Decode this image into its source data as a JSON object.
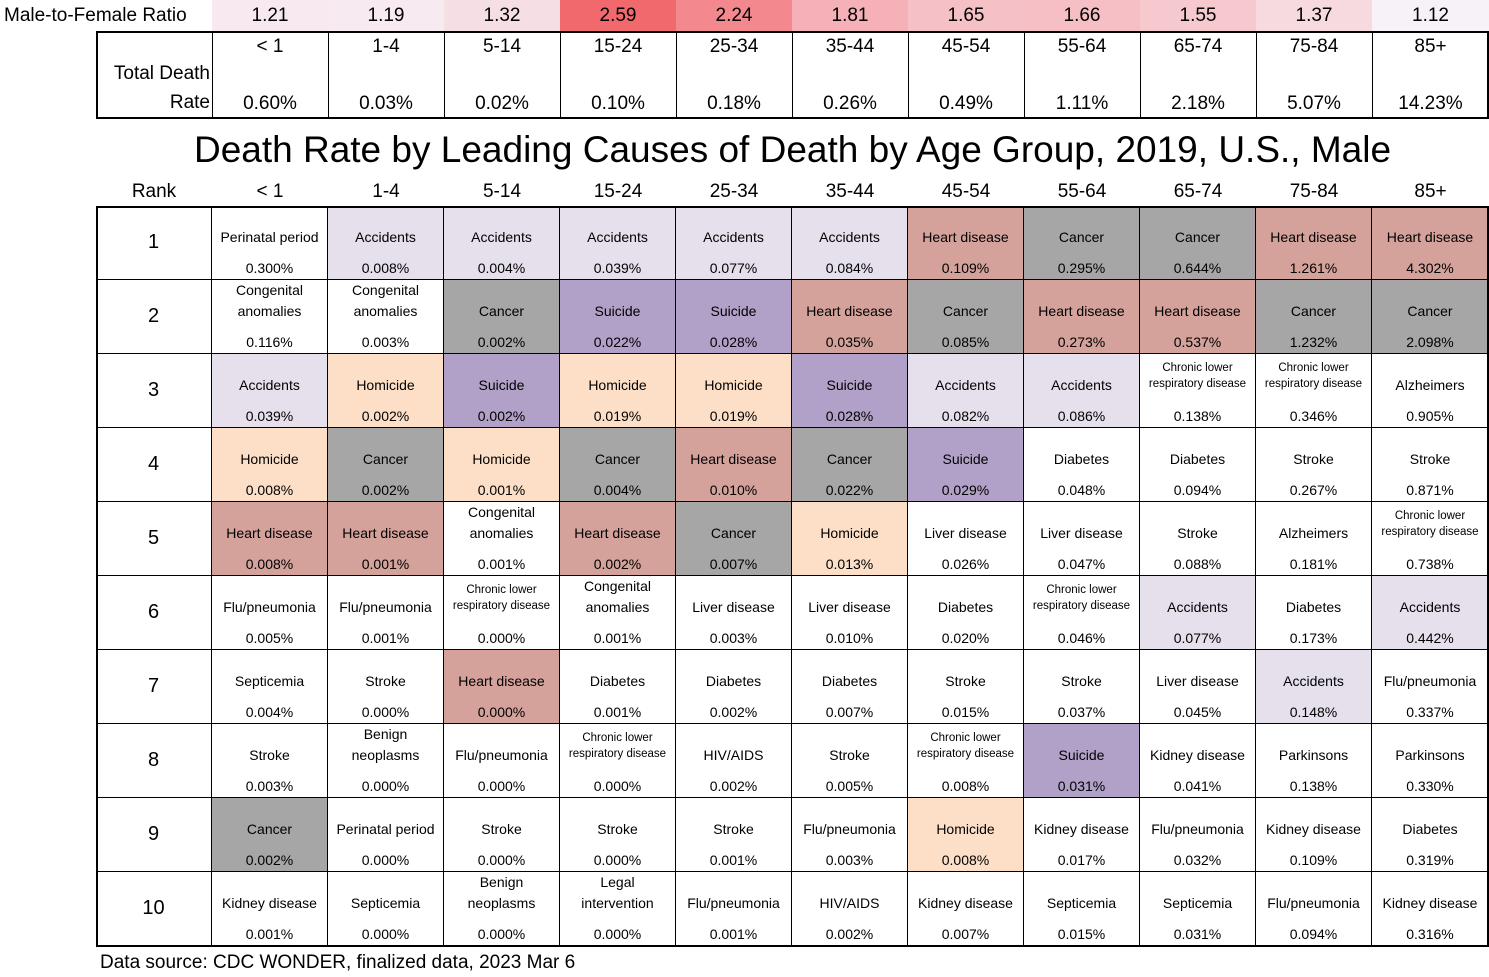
{
  "ratio_label": "Male-to-Female Ratio",
  "total_death_rate_label": [
    "Total Death",
    "Rate"
  ],
  "title": "Death Rate by Leading Causes of Death by Age Group, 2019, U.S., Male",
  "rank_header": "Rank",
  "source": "Data source: CDC WONDER, finalized data, 2023 Mar 6",
  "colors": {
    "Accidents": "#e6e0ec",
    "Heart disease": "#d4a29a",
    "Cancer": "#a6a6a6",
    "Suicide": "#b1a0c7",
    "Homicide": "#fcdfc6"
  },
  "chart_data": {
    "type": "table",
    "age_groups": [
      "< 1",
      "1-4",
      "5-14",
      "15-24",
      "25-34",
      "35-44",
      "45-54",
      "55-64",
      "65-74",
      "75-84",
      "85+"
    ],
    "male_to_female_ratio": [
      "1.21",
      "1.19",
      "1.32",
      "2.59",
      "2.24",
      "1.81",
      "1.65",
      "1.66",
      "1.55",
      "1.37",
      "1.12"
    ],
    "total_death_rate": [
      "0.60%",
      "0.03%",
      "0.02%",
      "0.10%",
      "0.18%",
      "0.26%",
      "0.49%",
      "1.11%",
      "2.18%",
      "5.07%",
      "14.23%"
    ],
    "ranks": [
      {
        "rank": "1",
        "cells": [
          {
            "cause": "Perinatal period",
            "rate": "0.300%"
          },
          {
            "cause": "Accidents",
            "rate": "0.008%"
          },
          {
            "cause": "Accidents",
            "rate": "0.004%"
          },
          {
            "cause": "Accidents",
            "rate": "0.039%"
          },
          {
            "cause": "Accidents",
            "rate": "0.077%"
          },
          {
            "cause": "Accidents",
            "rate": "0.084%"
          },
          {
            "cause": "Heart disease",
            "rate": "0.109%"
          },
          {
            "cause": "Cancer",
            "rate": "0.295%"
          },
          {
            "cause": "Cancer",
            "rate": "0.644%"
          },
          {
            "cause": "Heart disease",
            "rate": "1.261%"
          },
          {
            "cause": "Heart disease",
            "rate": "4.302%"
          }
        ]
      },
      {
        "rank": "2",
        "cells": [
          {
            "cause": "Congenital anomalies",
            "rate": "0.116%"
          },
          {
            "cause": "Congenital anomalies",
            "rate": "0.003%"
          },
          {
            "cause": "Cancer",
            "rate": "0.002%"
          },
          {
            "cause": "Suicide",
            "rate": "0.022%"
          },
          {
            "cause": "Suicide",
            "rate": "0.028%"
          },
          {
            "cause": "Heart disease",
            "rate": "0.035%"
          },
          {
            "cause": "Cancer",
            "rate": "0.085%"
          },
          {
            "cause": "Heart disease",
            "rate": "0.273%"
          },
          {
            "cause": "Heart disease",
            "rate": "0.537%"
          },
          {
            "cause": "Cancer",
            "rate": "1.232%"
          },
          {
            "cause": "Cancer",
            "rate": "2.098%"
          }
        ]
      },
      {
        "rank": "3",
        "cells": [
          {
            "cause": "Accidents",
            "rate": "0.039%"
          },
          {
            "cause": "Homicide",
            "rate": "0.002%"
          },
          {
            "cause": "Suicide",
            "rate": "0.002%"
          },
          {
            "cause": "Homicide",
            "rate": "0.019%"
          },
          {
            "cause": "Homicide",
            "rate": "0.019%"
          },
          {
            "cause": "Suicide",
            "rate": "0.028%"
          },
          {
            "cause": "Accidents",
            "rate": "0.082%"
          },
          {
            "cause": "Accidents",
            "rate": "0.086%"
          },
          {
            "cause": "Chronic lower respiratory disease",
            "rate": "0.138%"
          },
          {
            "cause": "Chronic lower respiratory disease",
            "rate": "0.346%"
          },
          {
            "cause": "Alzheimers",
            "rate": "0.905%"
          }
        ]
      },
      {
        "rank": "4",
        "cells": [
          {
            "cause": "Homicide",
            "rate": "0.008%"
          },
          {
            "cause": "Cancer",
            "rate": "0.002%"
          },
          {
            "cause": "Homicide",
            "rate": "0.001%"
          },
          {
            "cause": "Cancer",
            "rate": "0.004%"
          },
          {
            "cause": "Heart disease",
            "rate": "0.010%"
          },
          {
            "cause": "Cancer",
            "rate": "0.022%"
          },
          {
            "cause": "Suicide",
            "rate": "0.029%"
          },
          {
            "cause": "Diabetes",
            "rate": "0.048%"
          },
          {
            "cause": "Diabetes",
            "rate": "0.094%"
          },
          {
            "cause": "Stroke",
            "rate": "0.267%"
          },
          {
            "cause": "Stroke",
            "rate": "0.871%"
          }
        ]
      },
      {
        "rank": "5",
        "cells": [
          {
            "cause": "Heart disease",
            "rate": "0.008%"
          },
          {
            "cause": "Heart disease",
            "rate": "0.001%"
          },
          {
            "cause": "Congenital anomalies",
            "rate": "0.001%"
          },
          {
            "cause": "Heart disease",
            "rate": "0.002%"
          },
          {
            "cause": "Cancer",
            "rate": "0.007%"
          },
          {
            "cause": "Homicide",
            "rate": "0.013%"
          },
          {
            "cause": "Liver disease",
            "rate": "0.026%"
          },
          {
            "cause": "Liver disease",
            "rate": "0.047%"
          },
          {
            "cause": "Stroke",
            "rate": "0.088%"
          },
          {
            "cause": "Alzheimers",
            "rate": "0.181%"
          },
          {
            "cause": "Chronic lower respiratory disease",
            "rate": "0.738%"
          }
        ]
      },
      {
        "rank": "6",
        "cells": [
          {
            "cause": "Flu/pneumonia",
            "rate": "0.005%"
          },
          {
            "cause": "Flu/pneumonia",
            "rate": "0.001%"
          },
          {
            "cause": "Chronic lower respiratory disease",
            "rate": "0.000%"
          },
          {
            "cause": "Congenital anomalies",
            "rate": "0.001%"
          },
          {
            "cause": "Liver disease",
            "rate": "0.003%"
          },
          {
            "cause": "Liver disease",
            "rate": "0.010%"
          },
          {
            "cause": "Diabetes",
            "rate": "0.020%"
          },
          {
            "cause": "Chronic lower respiratory disease",
            "rate": "0.046%"
          },
          {
            "cause": "Accidents",
            "rate": "0.077%"
          },
          {
            "cause": "Diabetes",
            "rate": "0.173%"
          },
          {
            "cause": "Accidents",
            "rate": "0.442%"
          }
        ]
      },
      {
        "rank": "7",
        "cells": [
          {
            "cause": "Septicemia",
            "rate": "0.004%"
          },
          {
            "cause": "Stroke",
            "rate": "0.000%"
          },
          {
            "cause": "Heart disease",
            "rate": "0.000%"
          },
          {
            "cause": "Diabetes",
            "rate": "0.001%"
          },
          {
            "cause": "Diabetes",
            "rate": "0.002%"
          },
          {
            "cause": "Diabetes",
            "rate": "0.007%"
          },
          {
            "cause": "Stroke",
            "rate": "0.015%"
          },
          {
            "cause": "Stroke",
            "rate": "0.037%"
          },
          {
            "cause": "Liver disease",
            "rate": "0.045%"
          },
          {
            "cause": "Accidents",
            "rate": "0.148%"
          },
          {
            "cause": "Flu/pneumonia",
            "rate": "0.337%"
          }
        ]
      },
      {
        "rank": "8",
        "cells": [
          {
            "cause": "Stroke",
            "rate": "0.003%"
          },
          {
            "cause": "Benign neoplasms",
            "rate": "0.000%"
          },
          {
            "cause": "Flu/pneumonia",
            "rate": "0.000%"
          },
          {
            "cause": "Chronic lower respiratory disease",
            "rate": "0.000%"
          },
          {
            "cause": "HIV/AIDS",
            "rate": "0.002%"
          },
          {
            "cause": "Stroke",
            "rate": "0.005%"
          },
          {
            "cause": "Chronic lower respiratory disease",
            "rate": "0.008%"
          },
          {
            "cause": "Suicide",
            "rate": "0.031%"
          },
          {
            "cause": "Kidney disease",
            "rate": "0.041%"
          },
          {
            "cause": "Parkinsons",
            "rate": "0.138%"
          },
          {
            "cause": "Parkinsons",
            "rate": "0.330%"
          }
        ]
      },
      {
        "rank": "9",
        "cells": [
          {
            "cause": "Cancer",
            "rate": "0.002%"
          },
          {
            "cause": "Perinatal period",
            "rate": "0.000%"
          },
          {
            "cause": "Stroke",
            "rate": "0.000%"
          },
          {
            "cause": "Stroke",
            "rate": "0.000%"
          },
          {
            "cause": "Stroke",
            "rate": "0.001%"
          },
          {
            "cause": "Flu/pneumonia",
            "rate": "0.003%"
          },
          {
            "cause": "Homicide",
            "rate": "0.008%"
          },
          {
            "cause": "Kidney disease",
            "rate": "0.017%"
          },
          {
            "cause": "Flu/pneumonia",
            "rate": "0.032%"
          },
          {
            "cause": "Kidney disease",
            "rate": "0.109%"
          },
          {
            "cause": "Diabetes",
            "rate": "0.319%"
          }
        ]
      },
      {
        "rank": "10",
        "cells": [
          {
            "cause": "Kidney disease",
            "rate": "0.001%"
          },
          {
            "cause": "Septicemia",
            "rate": "0.000%"
          },
          {
            "cause": "Benign neoplasms",
            "rate": "0.000%"
          },
          {
            "cause": "Legal intervention",
            "rate": "0.000%"
          },
          {
            "cause": "Flu/pneumonia",
            "rate": "0.001%"
          },
          {
            "cause": "HIV/AIDS",
            "rate": "0.002%"
          },
          {
            "cause": "Kidney disease",
            "rate": "0.007%"
          },
          {
            "cause": "Septicemia",
            "rate": "0.015%"
          },
          {
            "cause": "Septicemia",
            "rate": "0.031%"
          },
          {
            "cause": "Flu/pneumonia",
            "rate": "0.094%"
          },
          {
            "cause": "Kidney disease",
            "rate": "0.316%"
          }
        ]
      }
    ]
  }
}
